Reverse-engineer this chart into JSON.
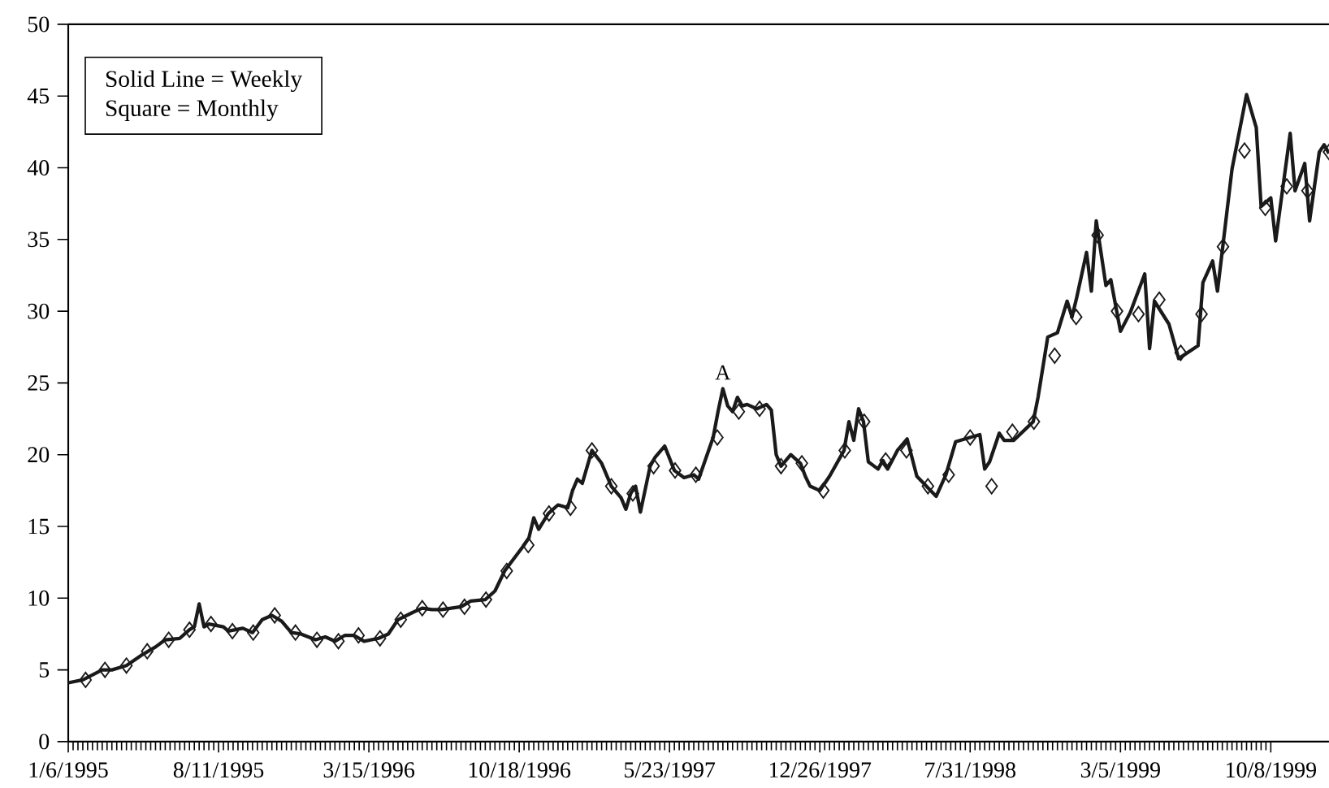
{
  "chart_data": {
    "type": "line",
    "xlim": [
      "1995-01-06",
      "1999-12-31"
    ],
    "ylim": [
      0,
      50
    ],
    "yticks": [
      0,
      5,
      10,
      15,
      20,
      25,
      30,
      35,
      40,
      45,
      50
    ],
    "xticks": [
      {
        "value": "1995-01-06",
        "label": "1/6/1995"
      },
      {
        "value": "1995-08-11",
        "label": "8/11/1995"
      },
      {
        "value": "1996-03-15",
        "label": "3/15/1996"
      },
      {
        "value": "1996-10-18",
        "label": "10/18/1996"
      },
      {
        "value": "1997-05-23",
        "label": "5/23/1997"
      },
      {
        "value": "1997-12-26",
        "label": "12/26/1997"
      },
      {
        "value": "1998-07-31",
        "label": "7/31/1998"
      },
      {
        "value": "1999-03-05",
        "label": "3/5/1999"
      },
      {
        "value": "1999-10-08",
        "label": "10/8/1999"
      }
    ],
    "annotations": [
      "Solid Line = Weekly",
      "Square = Monthly",
      {
        "text": "A",
        "x": "1997-08-08",
        "y": 24.6
      }
    ],
    "series": [
      {
        "type": "line",
        "color": "#1a1a1a",
        "marker": "none",
        "line_style": "solid",
        "x": [
          "1995-01-06",
          "1995-01-27",
          "1995-02-24",
          "1995-03-10",
          "1995-03-31",
          "1995-04-21",
          "1995-05-12",
          "1995-05-26",
          "1995-06-16",
          "1995-06-30",
          "1995-07-07",
          "1995-07-14",
          "1995-07-21",
          "1995-07-28",
          "1995-08-18",
          "1995-08-25",
          "1995-09-15",
          "1995-09-29",
          "1995-10-13",
          "1995-10-27",
          "1995-11-10",
          "1995-11-24",
          "1995-12-08",
          "1995-12-29",
          "1996-01-12",
          "1996-01-26",
          "1996-02-09",
          "1996-02-23",
          "1996-03-08",
          "1996-03-29",
          "1996-04-12",
          "1996-04-26",
          "1996-05-17",
          "1996-05-31",
          "1996-06-14",
          "1996-06-28",
          "1996-07-12",
          "1996-07-26",
          "1996-08-09",
          "1996-08-30",
          "1996-09-13",
          "1996-09-27",
          "1996-10-25",
          "1996-11-01",
          "1996-11-08",
          "1996-11-15",
          "1996-11-29",
          "1996-12-13",
          "1996-12-27",
          "1997-01-03",
          "1997-01-10",
          "1997-01-17",
          "1997-01-31",
          "1997-02-14",
          "1997-02-28",
          "1997-03-14",
          "1997-03-21",
          "1997-03-28",
          "1997-04-04",
          "1997-04-11",
          "1997-04-25",
          "1997-05-02",
          "1997-05-16",
          "1997-05-30",
          "1997-06-13",
          "1997-06-27",
          "1997-07-04",
          "1997-07-25",
          "1997-08-01",
          "1997-08-08",
          "1997-08-15",
          "1997-08-22",
          "1997-08-29",
          "1997-09-05",
          "1997-09-12",
          "1997-09-26",
          "1997-10-10",
          "1997-10-17",
          "1997-10-24",
          "1997-10-31",
          "1997-11-14",
          "1997-11-28",
          "1997-12-05",
          "1997-12-12",
          "1997-12-26",
          "1998-01-09",
          "1998-01-30",
          "1998-02-06",
          "1998-02-13",
          "1998-02-20",
          "1998-02-27",
          "1998-03-06",
          "1998-03-20",
          "1998-03-27",
          "1998-04-03",
          "1998-04-17",
          "1998-05-01",
          "1998-05-15",
          "1998-05-29",
          "1998-06-12",
          "1998-06-26",
          "1998-07-10",
          "1998-07-31",
          "1998-08-14",
          "1998-08-21",
          "1998-08-28",
          "1998-09-11",
          "1998-09-18",
          "1998-10-02",
          "1998-10-30",
          "1998-11-06",
          "1998-11-20",
          "1998-12-04",
          "1998-12-18",
          "1998-12-25",
          "1999-01-01",
          "1999-01-15",
          "1999-01-22",
          "1999-01-29",
          "1999-02-12",
          "1999-02-19",
          "1999-03-05",
          "1999-03-19",
          "1999-04-09",
          "1999-04-16",
          "1999-04-23",
          "1999-05-14",
          "1999-05-28",
          "1999-06-25",
          "1999-07-02",
          "1999-07-16",
          "1999-07-23",
          "1999-08-13",
          "1999-09-03",
          "1999-09-17",
          "1999-09-24",
          "1999-10-08",
          "1999-10-15",
          "1999-11-05",
          "1999-11-12",
          "1999-11-26",
          "1999-12-03",
          "1999-12-17",
          "1999-12-24",
          "1999-12-31"
        ],
        "values": [
          4.1,
          4.3,
          5.0,
          5.0,
          5.3,
          6.0,
          6.6,
          7.1,
          7.2,
          7.8,
          8.0,
          9.6,
          8.0,
          8.2,
          8.0,
          7.7,
          7.9,
          7.6,
          8.5,
          8.8,
          8.4,
          7.6,
          7.5,
          7.1,
          7.3,
          7.0,
          7.4,
          7.4,
          7.0,
          7.2,
          7.5,
          8.5,
          9.0,
          9.3,
          9.2,
          9.2,
          9.3,
          9.4,
          9.8,
          9.9,
          10.5,
          11.9,
          13.7,
          14.2,
          15.6,
          14.8,
          15.9,
          16.5,
          16.3,
          17.5,
          18.3,
          18.0,
          20.3,
          19.4,
          17.8,
          17.0,
          16.2,
          17.3,
          17.8,
          16.0,
          19.2,
          19.8,
          20.6,
          18.9,
          18.4,
          18.6,
          18.3,
          21.2,
          23.0,
          24.6,
          23.4,
          23.0,
          24.0,
          23.4,
          23.5,
          23.2,
          23.5,
          23.1,
          20.0,
          19.2,
          20.0,
          19.4,
          18.5,
          17.8,
          17.5,
          18.5,
          20.3,
          22.3,
          21.0,
          23.2,
          22.3,
          19.5,
          19.0,
          19.6,
          19.0,
          20.3,
          21.1,
          18.5,
          17.8,
          17.1,
          18.6,
          20.9,
          21.2,
          21.4,
          19.0,
          19.5,
          21.5,
          21.0,
          21.0,
          22.3,
          24.0,
          28.2,
          28.5,
          30.7,
          29.6,
          31.0,
          34.1,
          31.4,
          36.3,
          31.8,
          32.2,
          28.6,
          29.9,
          32.6,
          27.4,
          30.7,
          29.1,
          26.7,
          27.6,
          32.0,
          33.5,
          31.4,
          39.9,
          45.1,
          42.8,
          37.3,
          37.9,
          34.9,
          42.4,
          38.4,
          40.3,
          36.3,
          41.1,
          41.6,
          41.0
        ]
      },
      {
        "type": "scatter",
        "color": "#1a1a1a",
        "marker": "diamond",
        "x": [
          "1995-01-31",
          "1995-02-28",
          "1995-03-31",
          "1995-04-30",
          "1995-05-31",
          "1995-06-30",
          "1995-07-31",
          "1995-08-31",
          "1995-09-30",
          "1995-10-31",
          "1995-11-30",
          "1995-12-31",
          "1996-01-31",
          "1996-02-29",
          "1996-03-31",
          "1996-04-30",
          "1996-05-31",
          "1996-06-30",
          "1996-07-31",
          "1996-08-31",
          "1996-09-30",
          "1996-10-31",
          "1996-11-30",
          "1996-12-31",
          "1997-01-31",
          "1997-02-28",
          "1997-03-31",
          "1997-04-30",
          "1997-05-31",
          "1997-06-30",
          "1997-07-31",
          "1997-08-31",
          "1997-09-30",
          "1997-10-31",
          "1997-11-30",
          "1997-12-31",
          "1998-01-31",
          "1998-02-28",
          "1998-03-31",
          "1998-04-30",
          "1998-05-31",
          "1998-06-30",
          "1998-07-31",
          "1998-08-31",
          "1998-09-30",
          "1998-10-31",
          "1998-11-30",
          "1998-12-31",
          "1999-01-31",
          "1999-02-28",
          "1999-03-31",
          "1999-04-30",
          "1999-05-31",
          "1999-06-30",
          "1999-07-31",
          "1999-08-31",
          "1999-09-30",
          "1999-10-31",
          "1999-11-30",
          "1999-12-31"
        ],
        "values": [
          4.3,
          5.0,
          5.3,
          6.3,
          7.1,
          7.8,
          8.2,
          7.7,
          7.6,
          8.8,
          7.6,
          7.1,
          7.0,
          7.4,
          7.2,
          8.5,
          9.3,
          9.2,
          9.4,
          9.9,
          11.9,
          13.7,
          15.9,
          16.3,
          20.3,
          17.8,
          17.3,
          19.2,
          18.9,
          18.6,
          21.2,
          23.0,
          23.2,
          19.2,
          19.4,
          17.5,
          20.3,
          22.3,
          19.6,
          20.3,
          17.8,
          18.6,
          21.2,
          17.8,
          21.6,
          22.3,
          26.9,
          29.6,
          35.3,
          30.0,
          29.8,
          30.8,
          27.1,
          29.8,
          34.5,
          41.2,
          37.2,
          38.7,
          38.4,
          41.1
        ]
      }
    ]
  }
}
